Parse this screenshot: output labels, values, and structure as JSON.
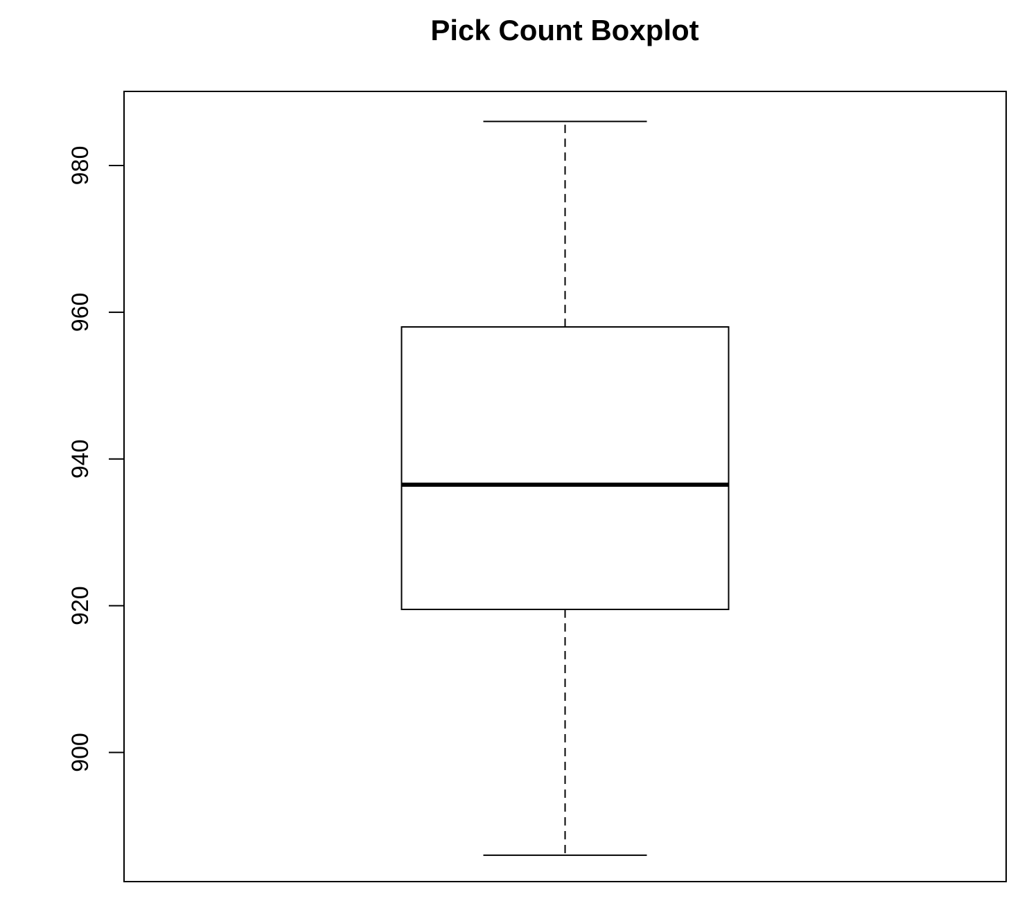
{
  "chart_data": {
    "type": "boxplot",
    "title": "Pick Count Boxplot",
    "xlabel": "",
    "ylabel": "",
    "ylim": [
      882.4,
      990.1
    ],
    "yticks": [
      900,
      920,
      940,
      960,
      980
    ],
    "grid": false,
    "legend": "none",
    "boxes": [
      {
        "whisker_low": 886,
        "q1": 919.5,
        "median": 936.5,
        "q3": 958,
        "whisker_high": 986
      }
    ]
  },
  "colors": {
    "stroke": "#000000",
    "background": "#ffffff"
  }
}
